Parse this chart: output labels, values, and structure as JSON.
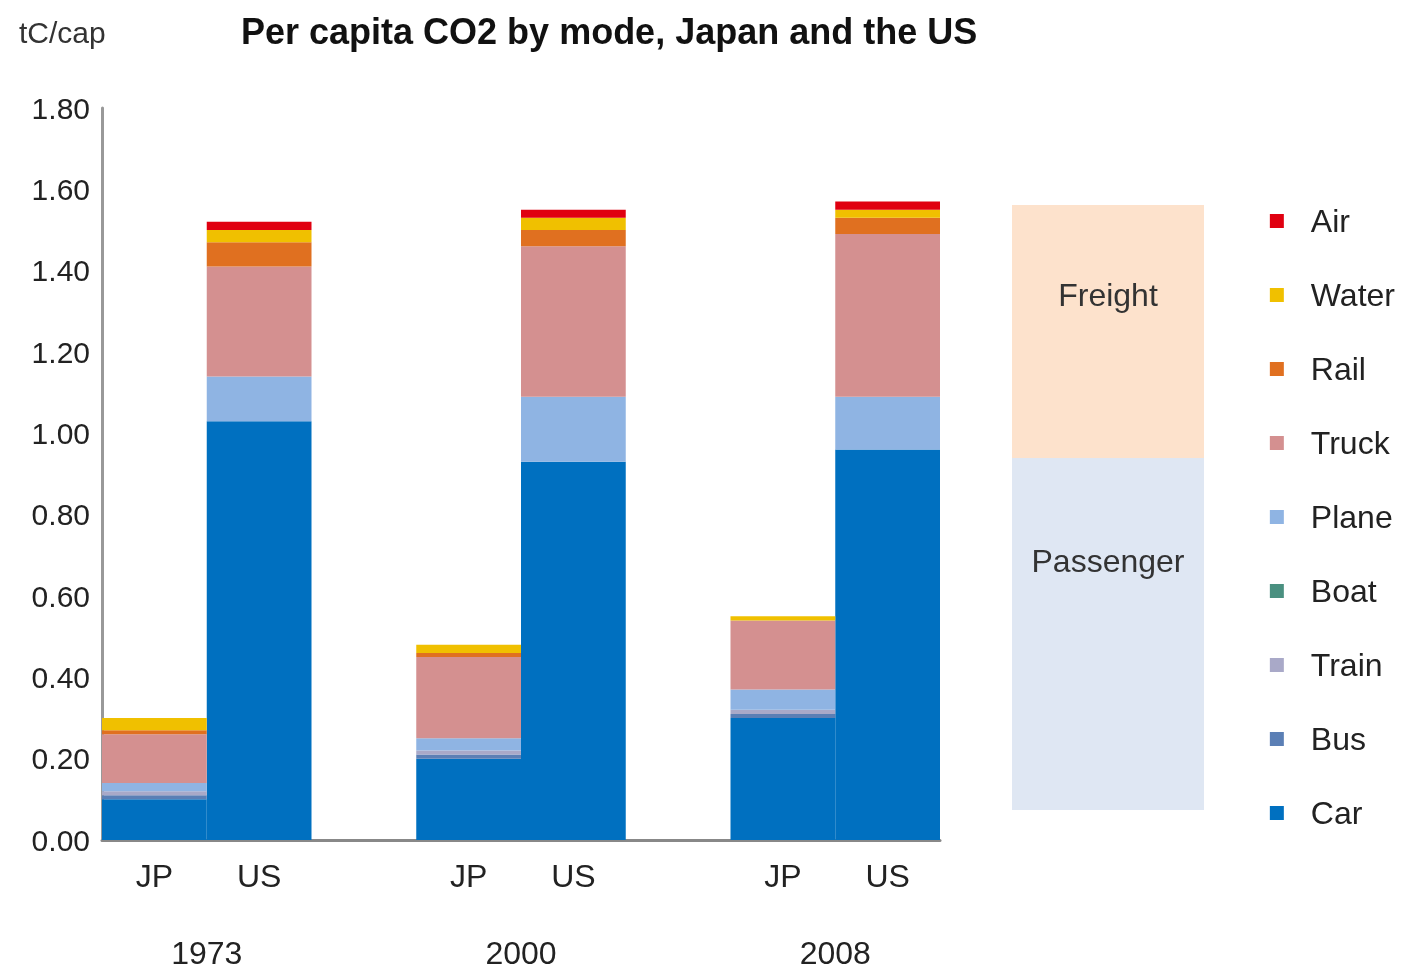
{
  "chart_data": {
    "type": "bar",
    "title": "Per capita CO2 by mode, Japan and the US",
    "ylabel": "tC/cap",
    "categories": [
      "JP",
      "US",
      null,
      "JP",
      "US",
      null,
      "JP",
      "US"
    ],
    "stacked": true,
    "series": [
      {
        "name": "Car",
        "color": "#0070c0",
        "values": [
          0.1,
          1.03,
          null,
          0.2,
          0.93,
          null,
          0.3,
          0.96
        ]
      },
      {
        "name": "Bus",
        "color": "#5b7fb5",
        "values": [
          0.01,
          0,
          null,
          0.01,
          0,
          null,
          0.01,
          0
        ]
      },
      {
        "name": "Train",
        "color": "#a9a9c8",
        "values": [
          0.01,
          0,
          null,
          0.01,
          0,
          null,
          0.01,
          0
        ]
      },
      {
        "name": "Boat",
        "color": "#4a9080",
        "values": [
          0,
          0,
          null,
          0,
          0,
          null,
          0,
          0
        ]
      },
      {
        "name": "Plane",
        "color": "#8fb4e3",
        "values": [
          0.02,
          0.11,
          null,
          0.03,
          0.16,
          null,
          0.05,
          0.13
        ]
      },
      {
        "name": "Truck",
        "color": "#d49090",
        "values": [
          0.12,
          0.27,
          null,
          0.2,
          0.37,
          null,
          0.17,
          0.4
        ]
      },
      {
        "name": "Rail",
        "color": "#e07020",
        "values": [
          0.01,
          0.06,
          null,
          0.01,
          0.04,
          null,
          0,
          0.04
        ]
      },
      {
        "name": "Water",
        "color": "#f0c000",
        "values": [
          0.03,
          0.03,
          null,
          0.02,
          0.03,
          null,
          0.01,
          0.02
        ]
      },
      {
        "name": "Air",
        "color": "#e00010",
        "values": [
          0,
          0.02,
          null,
          0,
          0.02,
          null,
          0,
          0.02
        ]
      }
    ],
    "ylim": [
      0,
      1.8
    ],
    "yticks": [
      {
        "value": 0,
        "label": "0.00"
      },
      {
        "value": 0.2,
        "label": "0.20"
      },
      {
        "value": 0.4,
        "label": "0.40"
      },
      {
        "value": 0.6,
        "label": "0.60"
      },
      {
        "value": 0.8,
        "label": "0.80"
      },
      {
        "value": 1.0,
        "label": "1.00"
      },
      {
        "value": 1.2,
        "label": "1.20"
      },
      {
        "value": 1.4,
        "label": "1.40"
      },
      {
        "value": 1.6,
        "label": "1.60"
      },
      {
        "value": 1.8,
        "label": "1.80"
      }
    ],
    "grid": false,
    "legend": "right",
    "annotations": [
      "1973",
      "2000",
      "2008",
      "Freight",
      "Passenger"
    ]
  }
}
